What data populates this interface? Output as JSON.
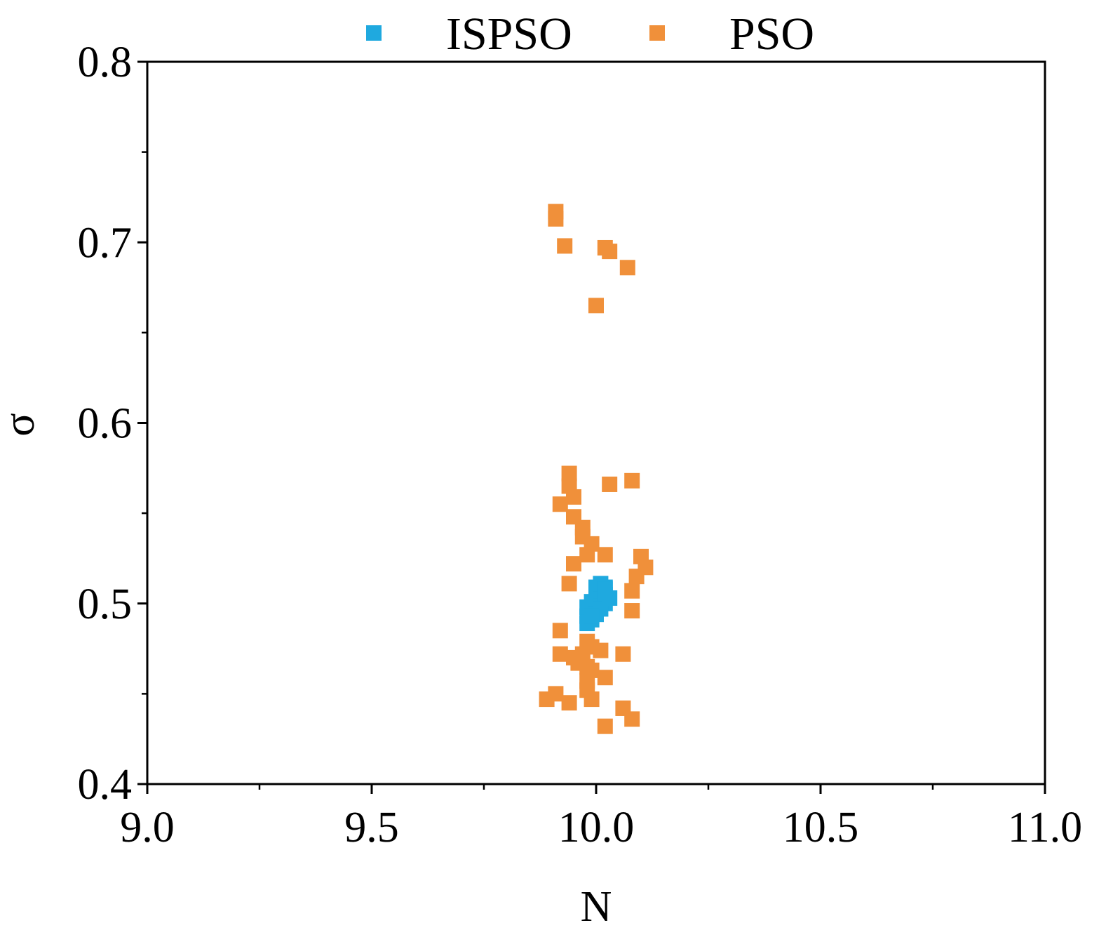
{
  "chart_data": {
    "type": "scatter",
    "xlabel": "N",
    "ylabel": "σ",
    "xlim": [
      9.0,
      11.0
    ],
    "ylim": [
      0.4,
      0.8
    ],
    "xticks": [
      "9.0",
      "9.5",
      "10.0",
      "10.5",
      "11.0"
    ],
    "xtick_values": [
      9.0,
      9.5,
      10.0,
      10.5,
      11.0
    ],
    "yticks": [
      "0.4",
      "0.5",
      "0.6",
      "0.7",
      "0.8"
    ],
    "ytick_values": [
      0.4,
      0.5,
      0.6,
      0.7,
      0.8
    ],
    "x_minor_ticks": [
      9.25,
      9.75,
      10.25,
      10.75
    ],
    "y_minor_ticks": [
      0.45,
      0.55,
      0.65,
      0.75
    ],
    "grid": false,
    "legend_position": "top-center",
    "series": [
      {
        "name": "ISPSO",
        "color": "#1fa9df",
        "points": [
          [
            9.98,
            0.493
          ],
          [
            9.98,
            0.498
          ],
          [
            9.99,
            0.496
          ],
          [
            9.99,
            0.501
          ],
          [
            10.0,
            0.499
          ],
          [
            10.0,
            0.504
          ],
          [
            10.01,
            0.502
          ],
          [
            10.01,
            0.507
          ],
          [
            10.02,
            0.505
          ],
          [
            10.02,
            0.5
          ],
          [
            9.99,
            0.491
          ],
          [
            10.0,
            0.494
          ],
          [
            10.01,
            0.497
          ],
          [
            10.02,
            0.509
          ],
          [
            10.03,
            0.503
          ],
          [
            9.98,
            0.489
          ],
          [
            9.99,
            0.493
          ],
          [
            10.0,
            0.509
          ],
          [
            10.01,
            0.511
          ],
          [
            10.02,
            0.508
          ]
        ]
      },
      {
        "name": "PSO",
        "color": "#f0903a",
        "points": [
          [
            9.91,
            0.717
          ],
          [
            9.91,
            0.713
          ],
          [
            9.93,
            0.698
          ],
          [
            10.02,
            0.697
          ],
          [
            10.03,
            0.695
          ],
          [
            10.07,
            0.686
          ],
          [
            10.0,
            0.665
          ],
          [
            9.94,
            0.572
          ],
          [
            9.94,
            0.565
          ],
          [
            10.03,
            0.566
          ],
          [
            10.08,
            0.568
          ],
          [
            9.95,
            0.559
          ],
          [
            9.92,
            0.555
          ],
          [
            9.95,
            0.548
          ],
          [
            9.97,
            0.542
          ],
          [
            9.97,
            0.537
          ],
          [
            9.99,
            0.533
          ],
          [
            9.98,
            0.527
          ],
          [
            10.02,
            0.527
          ],
          [
            9.95,
            0.522
          ],
          [
            10.1,
            0.526
          ],
          [
            10.11,
            0.52
          ],
          [
            10.09,
            0.515
          ],
          [
            9.94,
            0.511
          ],
          [
            10.08,
            0.507
          ],
          [
            10.08,
            0.496
          ],
          [
            9.92,
            0.485
          ],
          [
            9.98,
            0.479
          ],
          [
            9.99,
            0.476
          ],
          [
            10.01,
            0.474
          ],
          [
            9.97,
            0.472
          ],
          [
            9.92,
            0.472
          ],
          [
            9.95,
            0.47
          ],
          [
            10.06,
            0.472
          ],
          [
            9.96,
            0.467
          ],
          [
            9.98,
            0.465
          ],
          [
            9.99,
            0.463
          ],
          [
            9.98,
            0.457
          ],
          [
            10.02,
            0.459
          ],
          [
            9.98,
            0.452
          ],
          [
            9.91,
            0.45
          ],
          [
            9.89,
            0.447
          ],
          [
            9.99,
            0.447
          ],
          [
            9.94,
            0.445
          ],
          [
            10.06,
            0.442
          ],
          [
            10.08,
            0.436
          ],
          [
            10.02,
            0.432
          ]
        ]
      }
    ]
  }
}
